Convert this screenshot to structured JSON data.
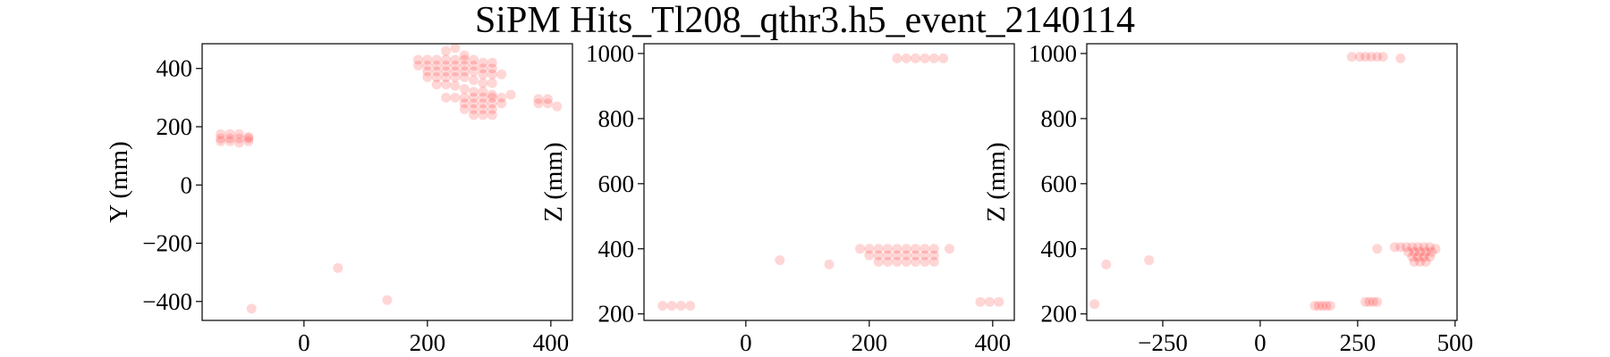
{
  "figure": {
    "title": "SiPM Hits_Tl208_qthr3.h5_event_2140114",
    "marker_color": "#ff0000"
  },
  "chart_data": [
    {
      "type": "scatter",
      "title": "",
      "xlabel": "",
      "ylabel": "Y (mm)",
      "xlim": [
        -165,
        435
      ],
      "ylim": [
        -465,
        485
      ],
      "xticks": [
        0,
        200,
        400
      ],
      "yticks": [
        -400,
        -200,
        0,
        200,
        400
      ],
      "tick_labels_x": [
        "0",
        "200",
        "400"
      ],
      "tick_labels_y": [
        "−400",
        "−200",
        "0",
        "200",
        "400"
      ],
      "x": [
        -135,
        -120,
        -105,
        -90,
        -135,
        -120,
        -105,
        -90,
        -135,
        -120,
        -105,
        -90,
        185,
        200,
        215,
        230,
        245,
        260,
        275,
        290,
        305,
        185,
        200,
        215,
        230,
        245,
        260,
        275,
        290,
        305,
        200,
        215,
        230,
        245,
        260,
        275,
        290,
        305,
        200,
        215,
        230,
        245,
        260,
        275,
        290,
        305,
        215,
        230,
        245,
        260,
        275,
        290,
        305,
        320,
        230,
        245,
        260,
        275,
        290,
        305,
        320,
        335,
        260,
        275,
        290,
        305,
        320,
        260,
        275,
        290,
        305,
        275,
        290,
        305,
        230,
        245,
        260,
        380,
        395,
        380,
        395,
        410,
        55,
        135,
        -85
      ],
      "y": [
        175,
        175,
        175,
        160,
        160,
        160,
        160,
        150,
        150,
        150,
        145,
        165,
        430,
        430,
        430,
        430,
        430,
        430,
        430,
        420,
        420,
        410,
        410,
        410,
        410,
        410,
        410,
        410,
        400,
        400,
        390,
        390,
        390,
        390,
        390,
        390,
        380,
        380,
        370,
        370,
        370,
        370,
        370,
        360,
        350,
        350,
        345,
        345,
        340,
        330,
        320,
        320,
        310,
        380,
        300,
        300,
        300,
        300,
        300,
        300,
        300,
        310,
        280,
        280,
        280,
        280,
        280,
        260,
        260,
        260,
        260,
        240,
        240,
        240,
        460,
        470,
        445,
        295,
        295,
        280,
        280,
        270,
        -285,
        -395,
        -425
      ]
    },
    {
      "type": "scatter",
      "title": "",
      "xlabel": "",
      "ylabel": "Z (mm)",
      "xlim": [
        -165,
        435
      ],
      "ylim": [
        180,
        1030
      ],
      "xticks": [
        0,
        200,
        400
      ],
      "yticks": [
        200,
        400,
        600,
        800,
        1000
      ],
      "tick_labels_x": [
        "0",
        "200",
        "400"
      ],
      "tick_labels_y": [
        "200",
        "400",
        "600",
        "800",
        "1000"
      ],
      "x": [
        -135,
        -120,
        -105,
        -90,
        185,
        200,
        215,
        230,
        245,
        260,
        275,
        290,
        305,
        330,
        200,
        215,
        230,
        245,
        260,
        275,
        290,
        305,
        215,
        230,
        245,
        260,
        275,
        290,
        305,
        245,
        260,
        275,
        290,
        305,
        320,
        380,
        395,
        410,
        55,
        135
      ],
      "y": [
        225,
        225,
        225,
        225,
        400,
        400,
        400,
        400,
        400,
        400,
        400,
        400,
        400,
        400,
        380,
        380,
        380,
        380,
        380,
        380,
        380,
        380,
        360,
        360,
        360,
        360,
        360,
        360,
        360,
        985,
        985,
        985,
        985,
        985,
        985,
        237,
        237,
        237,
        365,
        352
      ]
    },
    {
      "type": "scatter",
      "title": "",
      "xlabel": "",
      "ylabel": "Z (mm)",
      "xlim": [
        -445,
        505
      ],
      "ylim": [
        180,
        1030
      ],
      "xticks": [
        -250,
        0,
        250,
        500
      ],
      "yticks": [
        200,
        400,
        600,
        800,
        1000
      ],
      "tick_labels_x": [
        "−250",
        "0",
        "250",
        "500"
      ],
      "tick_labels_y": [
        "200",
        "400",
        "600",
        "800",
        "1000"
      ],
      "x": [
        -425,
        -395,
        -285,
        140,
        150,
        160,
        170,
        180,
        270,
        280,
        290,
        300,
        235,
        255,
        270,
        285,
        300,
        315,
        360,
        300,
        345,
        360,
        375,
        390,
        405,
        420,
        435,
        450,
        380,
        395,
        410,
        425,
        440,
        390,
        405,
        420,
        435,
        395,
        410,
        425
      ],
      "y": [
        230,
        352,
        365,
        225,
        225,
        225,
        225,
        225,
        237,
        237,
        237,
        237,
        990,
        990,
        990,
        990,
        990,
        990,
        985,
        400,
        405,
        405,
        405,
        405,
        405,
        405,
        405,
        400,
        390,
        390,
        390,
        390,
        390,
        375,
        375,
        375,
        375,
        360,
        360,
        360
      ]
    }
  ]
}
